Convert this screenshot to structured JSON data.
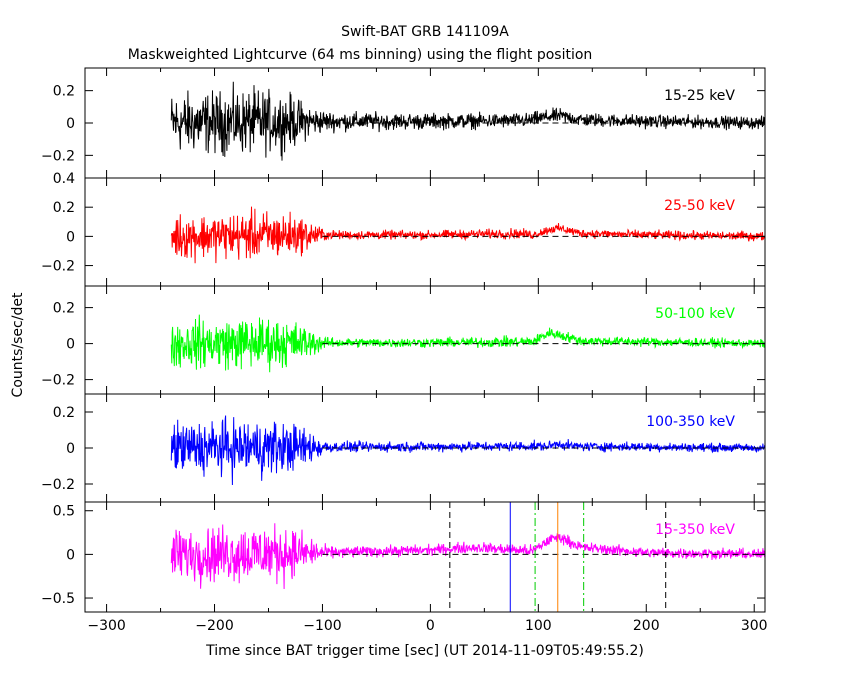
{
  "chart_data": {
    "type": "line",
    "title": "Swift-BAT GRB 141109A",
    "subtitle": "Maskweighted Lightcurve (64 ms binning) using the flight position",
    "xlabel": "Time since BAT trigger time [sec] (UT 2014-11-09T05:49:55.2)",
    "ylabel": "Counts/sec/det",
    "xlim": [
      -320,
      310
    ],
    "xticks": [
      -300,
      -200,
      -100,
      0,
      100,
      200,
      300
    ],
    "data_start": -240,
    "grid": false,
    "panels": [
      {
        "name": "15-25 keV",
        "color": "#000000",
        "ylim": [
          -0.34,
          0.34
        ],
        "yticks": [
          -0.2,
          0,
          0.2
        ],
        "ytick_labels": [
          "−0.2",
          "0",
          "0.2"
        ],
        "envelope": [
          [
            -240,
            0.24
          ],
          [
            -200,
            0.25
          ],
          [
            -160,
            0.26
          ],
          [
            -130,
            0.22
          ],
          [
            -110,
            0.12
          ],
          [
            -95,
            0.08
          ],
          [
            -50,
            0.07
          ],
          [
            0,
            0.065
          ],
          [
            60,
            0.06
          ],
          [
            100,
            0.06
          ],
          [
            160,
            0.055
          ],
          [
            310,
            0.05
          ]
        ],
        "trend": [
          [
            -240,
            0
          ],
          [
            -100,
            0.01
          ],
          [
            0,
            0.01
          ],
          [
            90,
            0.015
          ],
          [
            110,
            0.04
          ],
          [
            120,
            0.045
          ],
          [
            140,
            0.02
          ],
          [
            200,
            0.01
          ],
          [
            310,
            0.0
          ]
        ],
        "zero_line_from": -100
      },
      {
        "name": "25-50 keV",
        "color": "#ff0000",
        "ylim": [
          -0.34,
          0.4
        ],
        "yticks": [
          -0.2,
          0,
          0.2,
          0.4
        ],
        "ytick_labels": [
          "−0.2",
          "0",
          "0.2",
          "0.4"
        ],
        "envelope": [
          [
            -240,
            0.2
          ],
          [
            -200,
            0.2
          ],
          [
            -160,
            0.22
          ],
          [
            -130,
            0.2
          ],
          [
            -110,
            0.12
          ],
          [
            -95,
            0.04
          ],
          [
            0,
            0.04
          ],
          [
            80,
            0.045
          ],
          [
            100,
            0.04
          ],
          [
            160,
            0.04
          ],
          [
            310,
            0.04
          ]
        ],
        "trend": [
          [
            -240,
            0
          ],
          [
            -100,
            0.01
          ],
          [
            0,
            0.01
          ],
          [
            80,
            0.02
          ],
          [
            95,
            0.01
          ],
          [
            112,
            0.05
          ],
          [
            120,
            0.055
          ],
          [
            140,
            0.02
          ],
          [
            200,
            0.01
          ],
          [
            310,
            0.0
          ]
        ],
        "zero_line_from": -100
      },
      {
        "name": "50-100 keV",
        "color": "#00ff00",
        "ylim": [
          -0.28,
          0.32
        ],
        "yticks": [
          -0.2,
          0,
          0.2
        ],
        "ytick_labels": [
          "−0.2",
          "0",
          "0.2"
        ],
        "envelope": [
          [
            -240,
            0.17
          ],
          [
            -200,
            0.18
          ],
          [
            -160,
            0.19
          ],
          [
            -130,
            0.17
          ],
          [
            -110,
            0.1
          ],
          [
            -95,
            0.035
          ],
          [
            0,
            0.035
          ],
          [
            90,
            0.04
          ],
          [
            160,
            0.035
          ],
          [
            310,
            0.03
          ]
        ],
        "trend": [
          [
            -240,
            0
          ],
          [
            -100,
            0.005
          ],
          [
            0,
            0.005
          ],
          [
            95,
            0.01
          ],
          [
            110,
            0.06
          ],
          [
            118,
            0.05
          ],
          [
            140,
            0.015
          ],
          [
            310,
            0.0
          ]
        ],
        "zero_line_from": -100
      },
      {
        "name": "100-350 keV",
        "color": "#0000ff",
        "ylim": [
          -0.3,
          0.3
        ],
        "yticks": [
          -0.2,
          0,
          0.2
        ],
        "ytick_labels": [
          "−0.2",
          "0",
          "0.2"
        ],
        "envelope": [
          [
            -240,
            0.19
          ],
          [
            -200,
            0.2
          ],
          [
            -160,
            0.21
          ],
          [
            -130,
            0.18
          ],
          [
            -110,
            0.12
          ],
          [
            -95,
            0.04
          ],
          [
            0,
            0.035
          ],
          [
            100,
            0.035
          ],
          [
            310,
            0.03
          ]
        ],
        "trend": [
          [
            -240,
            0
          ],
          [
            -100,
            0.005
          ],
          [
            110,
            0.01
          ],
          [
            118,
            0.025
          ],
          [
            130,
            0.01
          ],
          [
            310,
            0.0
          ]
        ],
        "zero_line_from": -100
      },
      {
        "name": "15-350 keV",
        "color": "#ff00ff",
        "ylim": [
          -0.66,
          0.6
        ],
        "yticks": [
          -0.5,
          0,
          0.5
        ],
        "ytick_labels": [
          "−0.5",
          "0",
          "0.5"
        ],
        "envelope": [
          [
            -240,
            0.4
          ],
          [
            -200,
            0.42
          ],
          [
            -160,
            0.45
          ],
          [
            -130,
            0.4
          ],
          [
            -110,
            0.22
          ],
          [
            -95,
            0.09
          ],
          [
            0,
            0.08
          ],
          [
            90,
            0.085
          ],
          [
            160,
            0.08
          ],
          [
            310,
            0.08
          ]
        ],
        "trend": [
          [
            -240,
            0
          ],
          [
            -100,
            0.02
          ],
          [
            0,
            0.05
          ],
          [
            40,
            0.08
          ],
          [
            95,
            0.04
          ],
          [
            112,
            0.18
          ],
          [
            120,
            0.2
          ],
          [
            140,
            0.08
          ],
          [
            200,
            0.02
          ],
          [
            310,
            0.0
          ]
        ],
        "zero_line_from": -100,
        "markers": [
          {
            "x": 18,
            "color": "#000000",
            "dash": "6,4"
          },
          {
            "x": 218,
            "color": "#000000",
            "dash": "6,4"
          },
          {
            "x": 74,
            "color": "#0000ff",
            "dash": ""
          },
          {
            "x": 97,
            "color": "#00cc00",
            "dash": "8,3,2,3"
          },
          {
            "x": 142,
            "color": "#00cc00",
            "dash": "8,3,2,3"
          },
          {
            "x": 118,
            "color": "#ff8000",
            "dash": ""
          }
        ]
      }
    ]
  }
}
